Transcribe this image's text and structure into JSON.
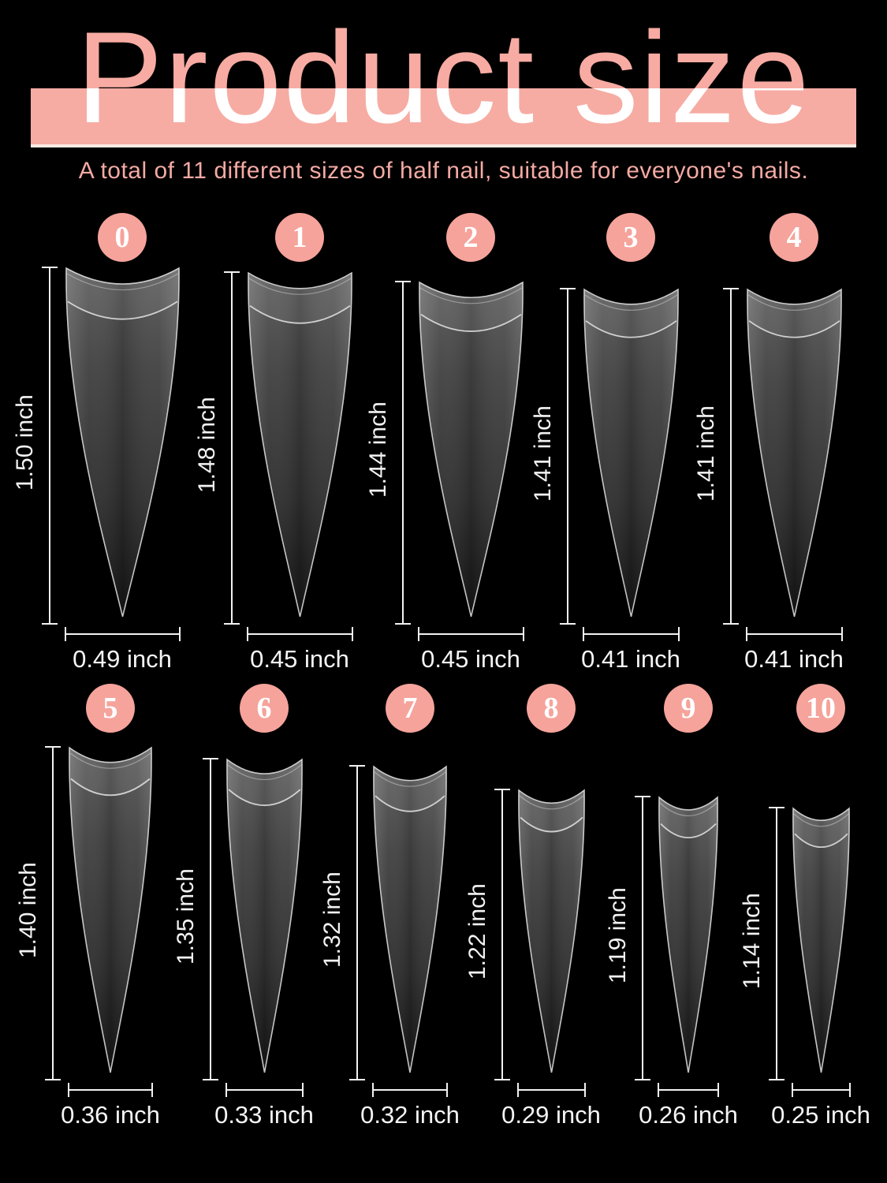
{
  "header": {
    "title": "Product size",
    "subtitle": "A total of 11 different sizes of half nail, suitable for everyone's nails."
  },
  "unit": "inch",
  "colors": {
    "background": "#000000",
    "banner_pink": "#f6aca3",
    "badge_pink": "#f5a39b",
    "title_pink": "#f7aba2",
    "title_on_banner": "#ffffff",
    "subtitle_pink": "#f4aaa4",
    "measure_line_white": "#f2f2f2",
    "nail_dark_gray": "#3a3a3a"
  },
  "nails": [
    {
      "size": "0",
      "length_label": "1.50 inch",
      "width_label": "0.49 inch",
      "length_in": 1.5,
      "width_in": 0.49
    },
    {
      "size": "1",
      "length_label": "1.48 inch",
      "width_label": "0.45 inch",
      "length_in": 1.48,
      "width_in": 0.45
    },
    {
      "size": "2",
      "length_label": "1.44 inch",
      "width_label": "0.45 inch",
      "length_in": 1.44,
      "width_in": 0.45
    },
    {
      "size": "3",
      "length_label": "1.41 inch",
      "width_label": "0.41 inch",
      "length_in": 1.41,
      "width_in": 0.41
    },
    {
      "size": "4",
      "length_label": "1.41 inch",
      "width_label": "0.41 inch",
      "length_in": 1.41,
      "width_in": 0.41
    },
    {
      "size": "5",
      "length_label": "1.40 inch",
      "width_label": "0.36 inch",
      "length_in": 1.4,
      "width_in": 0.36
    },
    {
      "size": "6",
      "length_label": "1.35 inch",
      "width_label": "0.33 inch",
      "length_in": 1.35,
      "width_in": 0.33
    },
    {
      "size": "7",
      "length_label": "1.32 inch",
      "width_label": "0.32 inch",
      "length_in": 1.32,
      "width_in": 0.32
    },
    {
      "size": "8",
      "length_label": "1.22 inch",
      "width_label": "0.29 inch",
      "length_in": 1.22,
      "width_in": 0.29
    },
    {
      "size": "9",
      "length_label": "1.19 inch",
      "width_label": "0.26 inch",
      "length_in": 1.19,
      "width_in": 0.26
    },
    {
      "size": "10",
      "length_label": "1.14 inch",
      "width_label": "0.25 inch",
      "length_in": 1.14,
      "width_in": 0.25
    }
  ]
}
